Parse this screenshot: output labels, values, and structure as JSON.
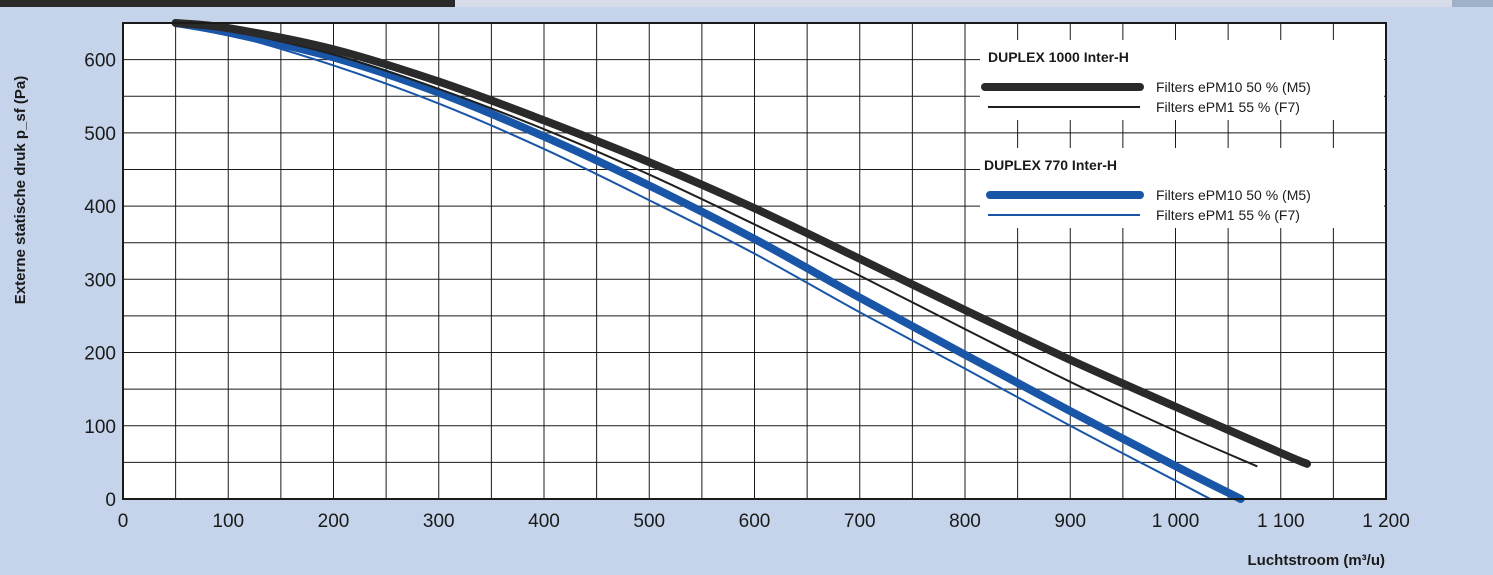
{
  "chart_data": {
    "type": "line",
    "xlabel": "Luchtstroom (m³/u)",
    "ylabel": "Externe statische druk p_sf (Pa)",
    "xlim": [
      0,
      1200
    ],
    "ylim": [
      0,
      650
    ],
    "x_ticks": [
      0,
      100,
      200,
      300,
      400,
      500,
      600,
      700,
      800,
      900,
      1000,
      1100,
      1200
    ],
    "x_tick_labels": [
      "0",
      "100",
      "200",
      "300",
      "400",
      "500",
      "600",
      "700",
      "800",
      "900",
      "1 000",
      "1 100",
      "1 200"
    ],
    "y_ticks": [
      0,
      100,
      200,
      300,
      400,
      500,
      600
    ],
    "y_tick_labels": [
      "0",
      "100",
      "200",
      "300",
      "400",
      "500",
      "600"
    ],
    "x_grid_step": 50,
    "y_grid_step": 50,
    "grid": true,
    "legend_position": "top-right",
    "legend_groups": [
      {
        "title": "DUPLEX 1000 Inter-H",
        "entries": [
          0,
          1
        ]
      },
      {
        "title": "DUPLEX 770 Inter-H",
        "entries": [
          2,
          3
        ]
      }
    ],
    "series": [
      {
        "name": "Filters ePM10 50 % (M5)",
        "color": "#2a2a2a",
        "width": 8,
        "points": [
          [
            50,
            650
          ],
          [
            100,
            643
          ],
          [
            200,
            614
          ],
          [
            300,
            570
          ],
          [
            400,
            517
          ],
          [
            500,
            460
          ],
          [
            600,
            397
          ],
          [
            700,
            328
          ],
          [
            800,
            258
          ],
          [
            900,
            190
          ],
          [
            1000,
            126
          ],
          [
            1100,
            63
          ],
          [
            1125,
            48
          ]
        ]
      },
      {
        "name": "Filters ePM1 55 % (F7)",
        "color": "#1e1e1e",
        "width": 2,
        "points": [
          [
            50,
            650
          ],
          [
            100,
            640
          ],
          [
            200,
            607
          ],
          [
            300,
            560
          ],
          [
            400,
            505
          ],
          [
            500,
            443
          ],
          [
            600,
            375
          ],
          [
            700,
            305
          ],
          [
            800,
            232
          ],
          [
            900,
            160
          ],
          [
            1000,
            93
          ],
          [
            1077,
            45
          ]
        ]
      },
      {
        "name": "Filters ePM10 50 % (M5)",
        "color": "#1a56a8",
        "width": 8,
        "points": [
          [
            50,
            650
          ],
          [
            100,
            637
          ],
          [
            200,
            603
          ],
          [
            300,
            555
          ],
          [
            400,
            495
          ],
          [
            500,
            428
          ],
          [
            600,
            355
          ],
          [
            700,
            275
          ],
          [
            800,
            197
          ],
          [
            900,
            120
          ],
          [
            1000,
            45
          ],
          [
            1062,
            0
          ]
        ]
      },
      {
        "name": "Filters ePM1 55 % (F7)",
        "color": "#1a56a8",
        "width": 2,
        "points": [
          [
            50,
            650
          ],
          [
            100,
            635
          ],
          [
            200,
            592
          ],
          [
            300,
            540
          ],
          [
            400,
            478
          ],
          [
            500,
            408
          ],
          [
            600,
            335
          ],
          [
            700,
            255
          ],
          [
            800,
            178
          ],
          [
            900,
            100
          ],
          [
            1000,
            25
          ],
          [
            1033,
            0
          ]
        ]
      }
    ]
  }
}
